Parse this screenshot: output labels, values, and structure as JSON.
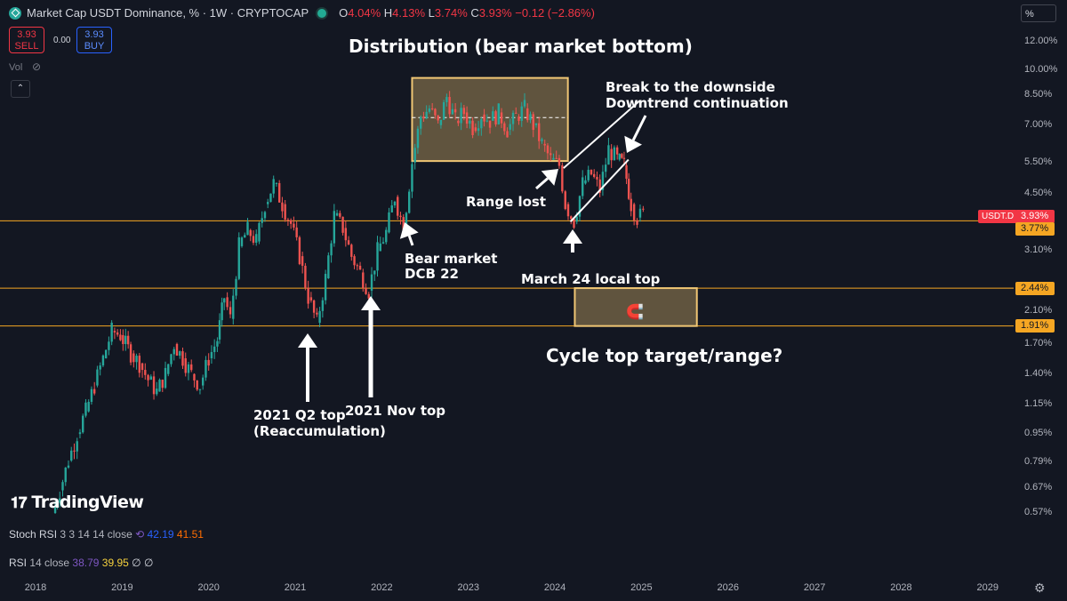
{
  "header": {
    "title": "Market Cap USDT Dominance, % · 1W · CRYPTOCAP",
    "open_label": "O",
    "open": "4.04%",
    "high_label": "H",
    "high": "4.13%",
    "low_label": "L",
    "low": "3.74%",
    "close_label": "C",
    "close": "3.93%",
    "change": "−0.12 (−2.86%)"
  },
  "trade": {
    "sell_price": "3.93",
    "sell_label": "SELL",
    "spread": "0.00",
    "buy_price": "3.93",
    "buy_label": "BUY"
  },
  "volume_label": "Vol",
  "scale_button": "%",
  "brand": "TradingView",
  "symbol_tag": "USDT.D",
  "indicators": {
    "stoch": {
      "name": "Stoch RSI",
      "params": "3 3 14 14 close",
      "k": "42.19",
      "d": "41.51"
    },
    "rsi": {
      "name": "RSI",
      "params": "14 close",
      "v1": "38.79",
      "v2": "39.95",
      "v3": "∅",
      "v4": "∅"
    }
  },
  "annotations": {
    "distribution": "Distribution (bear market bottom)",
    "break": "Break to the downside\nDowntrend continuation",
    "range_lost": "Range lost",
    "bear_market": "Bear market\nDCB 22",
    "march24": "March 24 local top",
    "cycle_top": "Cycle top target/range?",
    "q2top": "2021 Q2 top\n(Reaccumulation)",
    "novtop": "2021 Nov top"
  },
  "colors": {
    "up": "#26a69a",
    "down": "#ef5350",
    "level": "#f5a623",
    "box": "#f0c674",
    "bg": "#131722"
  },
  "chart_data": {
    "type": "candlestick",
    "title": "Market Cap USDT Dominance, % · 1W · CRYPTOCAP",
    "y_scale": "log",
    "ylim": [
      0.55,
      13.5
    ],
    "y_ticks": [
      "12.00%",
      "10.00%",
      "8.50%",
      "7.00%",
      "5.50%",
      "4.50%",
      "3.10%",
      "2.10%",
      "1.70%",
      "1.40%",
      "1.15%",
      "0.95%",
      "0.79%",
      "0.67%",
      "0.57%"
    ],
    "x_ticks": [
      "2018",
      "2019",
      "2020",
      "2021",
      "2022",
      "2023",
      "2024",
      "2025",
      "2026",
      "2027",
      "2028",
      "2029"
    ],
    "current_value": "3.93%",
    "horizontal_levels": [
      "3.77%",
      "2.44%",
      "1.91%"
    ],
    "series": [
      {
        "points": [
          [
            2018.2,
            0.57
          ],
          [
            2018.28,
            0.66
          ],
          [
            2018.38,
            0.8
          ],
          [
            2018.48,
            0.95
          ],
          [
            2018.58,
            1.1
          ],
          [
            2018.68,
            1.3
          ],
          [
            2018.78,
            1.55
          ],
          [
            2018.88,
            1.85
          ],
          [
            2018.98,
            1.8
          ],
          [
            2019.1,
            1.6
          ],
          [
            2019.2,
            1.5
          ],
          [
            2019.3,
            1.35
          ],
          [
            2019.4,
            1.25
          ],
          [
            2019.5,
            1.4
          ],
          [
            2019.6,
            1.7
          ],
          [
            2019.7,
            1.55
          ],
          [
            2019.8,
            1.4
          ],
          [
            2019.9,
            1.3
          ],
          [
            2020.0,
            1.55
          ],
          [
            2020.1,
            1.75
          ],
          [
            2020.18,
            2.3
          ],
          [
            2020.25,
            2.0
          ],
          [
            2020.35,
            3.2
          ],
          [
            2020.45,
            3.55
          ],
          [
            2020.55,
            3.3
          ],
          [
            2020.65,
            4.2
          ],
          [
            2020.75,
            4.8
          ],
          [
            2020.85,
            4.2
          ],
          [
            2020.95,
            3.7
          ],
          [
            2021.05,
            3.0
          ],
          [
            2021.15,
            2.3
          ],
          [
            2021.25,
            1.95
          ],
          [
            2021.35,
            2.6
          ],
          [
            2021.45,
            3.9
          ],
          [
            2021.55,
            3.6
          ],
          [
            2021.65,
            3.0
          ],
          [
            2021.75,
            2.7
          ],
          [
            2021.85,
            2.4
          ],
          [
            2021.95,
            3.1
          ],
          [
            2022.05,
            3.5
          ],
          [
            2022.15,
            4.4
          ],
          [
            2022.25,
            3.6
          ],
          [
            2022.35,
            5.5
          ],
          [
            2022.45,
            7.4
          ],
          [
            2022.55,
            7.8
          ],
          [
            2022.65,
            7.0
          ],
          [
            2022.75,
            8.4
          ],
          [
            2022.85,
            7.2
          ],
          [
            2022.95,
            7.6
          ],
          [
            2023.05,
            6.9
          ],
          [
            2023.15,
            7.5
          ],
          [
            2023.25,
            7.2
          ],
          [
            2023.35,
            7.6
          ],
          [
            2023.45,
            6.8
          ],
          [
            2023.55,
            7.4
          ],
          [
            2023.65,
            7.8
          ],
          [
            2023.75,
            7.0
          ],
          [
            2023.85,
            6.2
          ],
          [
            2023.95,
            5.6
          ],
          [
            2024.05,
            5.4
          ],
          [
            2024.12,
            4.2
          ],
          [
            2024.22,
            3.75
          ],
          [
            2024.32,
            4.8
          ],
          [
            2024.42,
            5.1
          ],
          [
            2024.52,
            4.6
          ],
          [
            2024.62,
            6.0
          ],
          [
            2024.72,
            5.6
          ],
          [
            2024.8,
            5.4
          ],
          [
            2024.88,
            4.2
          ],
          [
            2024.95,
            3.85
          ],
          [
            2025.02,
            3.93
          ]
        ]
      }
    ]
  }
}
